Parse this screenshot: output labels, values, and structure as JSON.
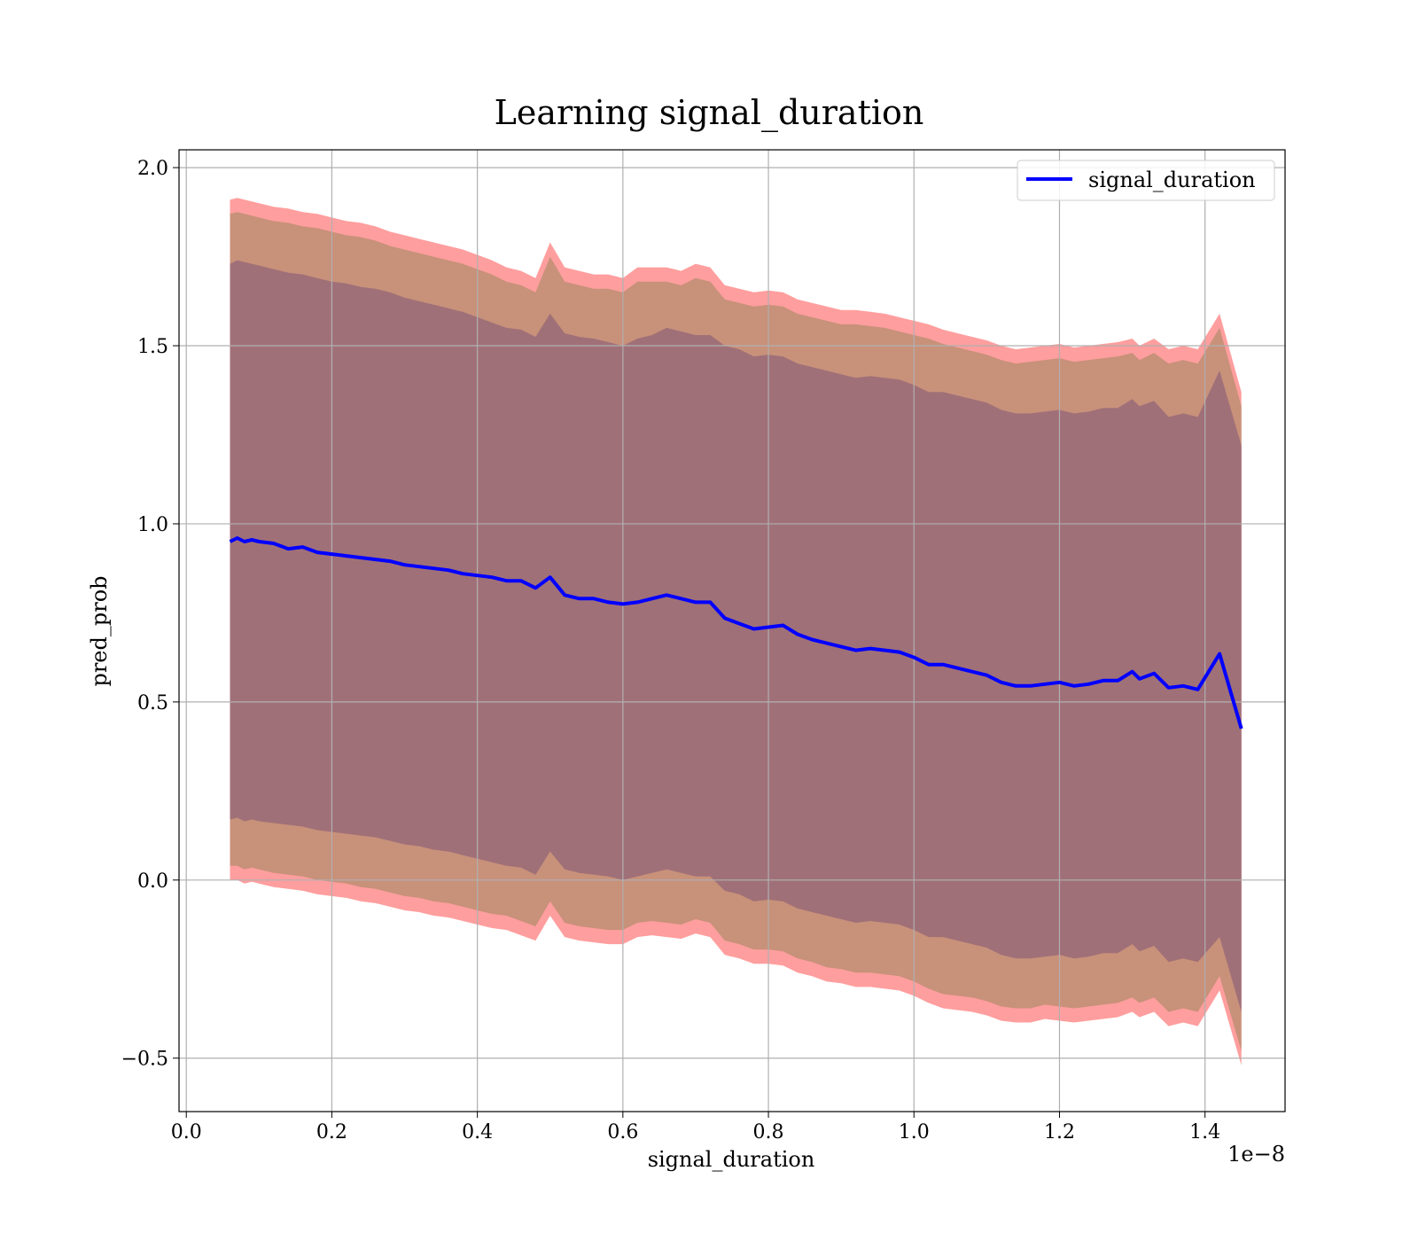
{
  "chart_data": {
    "type": "line",
    "title": "Learning signal_duration",
    "xlabel": "signal_duration",
    "ylabel": "pred_prob",
    "x_offset_label": "1e−8",
    "x_scale": 1e-08,
    "xlim": [
      -0.01,
      1.51
    ],
    "ylim": [
      -0.65,
      2.05
    ],
    "grid": true,
    "legend": {
      "location": "upper right",
      "entries": [
        "signal_duration"
      ]
    },
    "x_ticks": [
      0.0,
      0.2,
      0.4,
      0.6,
      0.8,
      1.0,
      1.2,
      1.4
    ],
    "x_tick_labels": [
      "0.0",
      "0.2",
      "0.4",
      "0.6",
      "0.8",
      "1.0",
      "1.2",
      "1.4"
    ],
    "y_ticks": [
      -0.5,
      0.0,
      0.5,
      1.0,
      1.5,
      2.0
    ],
    "y_tick_labels": [
      "−0.5",
      "0.0",
      "0.5",
      "1.0",
      "1.5",
      "2.0"
    ],
    "colors": {
      "line": "#0000ff",
      "outer_band": "#ff9e9e",
      "middle_band": "#c8917a",
      "inner_band": "#a07078"
    },
    "series": [
      {
        "name": "signal_duration",
        "x": [
          0.06,
          0.07,
          0.08,
          0.09,
          0.1,
          0.12,
          0.14,
          0.16,
          0.18,
          0.2,
          0.22,
          0.24,
          0.26,
          0.28,
          0.3,
          0.32,
          0.34,
          0.36,
          0.38,
          0.4,
          0.42,
          0.44,
          0.46,
          0.48,
          0.5,
          0.52,
          0.54,
          0.56,
          0.58,
          0.6,
          0.62,
          0.64,
          0.66,
          0.68,
          0.7,
          0.72,
          0.74,
          0.76,
          0.78,
          0.8,
          0.82,
          0.84,
          0.86,
          0.88,
          0.9,
          0.92,
          0.94,
          0.96,
          0.98,
          1.0,
          1.02,
          1.04,
          1.06,
          1.08,
          1.1,
          1.12,
          1.14,
          1.16,
          1.18,
          1.2,
          1.22,
          1.24,
          1.26,
          1.28,
          1.3,
          1.31,
          1.33,
          1.35,
          1.37,
          1.39,
          1.42,
          1.45
        ],
        "y": [
          0.95,
          0.96,
          0.95,
          0.955,
          0.95,
          0.945,
          0.93,
          0.935,
          0.92,
          0.915,
          0.91,
          0.905,
          0.9,
          0.895,
          0.885,
          0.88,
          0.875,
          0.87,
          0.86,
          0.855,
          0.85,
          0.84,
          0.84,
          0.82,
          0.85,
          0.8,
          0.79,
          0.79,
          0.78,
          0.775,
          0.78,
          0.79,
          0.8,
          0.79,
          0.78,
          0.78,
          0.735,
          0.72,
          0.705,
          0.71,
          0.715,
          0.69,
          0.675,
          0.665,
          0.655,
          0.645,
          0.65,
          0.645,
          0.64,
          0.625,
          0.605,
          0.605,
          0.595,
          0.585,
          0.575,
          0.555,
          0.545,
          0.545,
          0.55,
          0.555,
          0.545,
          0.55,
          0.56,
          0.56,
          0.585,
          0.565,
          0.58,
          0.54,
          0.545,
          0.535,
          0.635,
          0.425
        ],
        "band_outer_upper": [
          1.91,
          1.915,
          1.91,
          1.905,
          1.9,
          1.89,
          1.885,
          1.875,
          1.87,
          1.86,
          1.85,
          1.845,
          1.835,
          1.82,
          1.81,
          1.8,
          1.79,
          1.78,
          1.77,
          1.755,
          1.74,
          1.72,
          1.71,
          1.69,
          1.79,
          1.72,
          1.71,
          1.7,
          1.7,
          1.69,
          1.72,
          1.72,
          1.72,
          1.71,
          1.73,
          1.72,
          1.67,
          1.66,
          1.65,
          1.655,
          1.65,
          1.63,
          1.62,
          1.61,
          1.6,
          1.6,
          1.595,
          1.59,
          1.58,
          1.57,
          1.56,
          1.545,
          1.535,
          1.525,
          1.515,
          1.5,
          1.49,
          1.495,
          1.5,
          1.505,
          1.495,
          1.5,
          1.505,
          1.51,
          1.52,
          1.5,
          1.52,
          1.49,
          1.5,
          1.49,
          1.59,
          1.37
        ],
        "band_outer_lower": [
          0.0,
          0.0,
          -0.01,
          -0.005,
          -0.01,
          -0.02,
          -0.025,
          -0.03,
          -0.04,
          -0.045,
          -0.05,
          -0.06,
          -0.065,
          -0.075,
          -0.085,
          -0.09,
          -0.1,
          -0.105,
          -0.115,
          -0.125,
          -0.135,
          -0.14,
          -0.155,
          -0.17,
          -0.1,
          -0.16,
          -0.17,
          -0.175,
          -0.18,
          -0.18,
          -0.16,
          -0.155,
          -0.16,
          -0.165,
          -0.15,
          -0.16,
          -0.21,
          -0.22,
          -0.235,
          -0.235,
          -0.24,
          -0.26,
          -0.27,
          -0.285,
          -0.29,
          -0.3,
          -0.3,
          -0.305,
          -0.31,
          -0.325,
          -0.345,
          -0.36,
          -0.365,
          -0.37,
          -0.38,
          -0.395,
          -0.4,
          -0.4,
          -0.39,
          -0.395,
          -0.4,
          -0.395,
          -0.39,
          -0.385,
          -0.37,
          -0.385,
          -0.37,
          -0.41,
          -0.4,
          -0.41,
          -0.31,
          -0.52
        ],
        "band_middle_upper": [
          1.87,
          1.875,
          1.87,
          1.865,
          1.86,
          1.85,
          1.845,
          1.835,
          1.83,
          1.82,
          1.81,
          1.805,
          1.795,
          1.78,
          1.77,
          1.76,
          1.75,
          1.74,
          1.73,
          1.715,
          1.7,
          1.68,
          1.67,
          1.65,
          1.75,
          1.68,
          1.67,
          1.66,
          1.66,
          1.65,
          1.68,
          1.68,
          1.68,
          1.67,
          1.69,
          1.68,
          1.63,
          1.62,
          1.61,
          1.615,
          1.61,
          1.59,
          1.58,
          1.57,
          1.56,
          1.56,
          1.555,
          1.55,
          1.54,
          1.53,
          1.52,
          1.505,
          1.495,
          1.485,
          1.475,
          1.46,
          1.45,
          1.455,
          1.46,
          1.465,
          1.455,
          1.46,
          1.465,
          1.47,
          1.48,
          1.46,
          1.48,
          1.45,
          1.46,
          1.45,
          1.55,
          1.33
        ],
        "band_middle_lower": [
          0.04,
          0.04,
          0.03,
          0.035,
          0.03,
          0.02,
          0.015,
          0.01,
          0.0,
          -0.005,
          -0.01,
          -0.02,
          -0.025,
          -0.035,
          -0.045,
          -0.05,
          -0.06,
          -0.065,
          -0.075,
          -0.085,
          -0.095,
          -0.1,
          -0.115,
          -0.13,
          -0.06,
          -0.12,
          -0.13,
          -0.135,
          -0.14,
          -0.14,
          -0.12,
          -0.115,
          -0.12,
          -0.125,
          -0.11,
          -0.12,
          -0.17,
          -0.18,
          -0.195,
          -0.195,
          -0.2,
          -0.22,
          -0.23,
          -0.245,
          -0.25,
          -0.26,
          -0.26,
          -0.265,
          -0.27,
          -0.285,
          -0.305,
          -0.32,
          -0.325,
          -0.33,
          -0.34,
          -0.355,
          -0.36,
          -0.36,
          -0.35,
          -0.355,
          -0.36,
          -0.355,
          -0.35,
          -0.345,
          -0.33,
          -0.345,
          -0.33,
          -0.37,
          -0.36,
          -0.37,
          -0.27,
          -0.48
        ],
        "band_inner_upper": [
          1.73,
          1.74,
          1.735,
          1.73,
          1.725,
          1.715,
          1.705,
          1.7,
          1.69,
          1.68,
          1.675,
          1.665,
          1.66,
          1.65,
          1.635,
          1.625,
          1.615,
          1.605,
          1.595,
          1.58,
          1.565,
          1.55,
          1.545,
          1.525,
          1.59,
          1.535,
          1.525,
          1.52,
          1.51,
          1.5,
          1.52,
          1.53,
          1.55,
          1.54,
          1.53,
          1.53,
          1.5,
          1.49,
          1.47,
          1.475,
          1.47,
          1.45,
          1.44,
          1.43,
          1.42,
          1.41,
          1.415,
          1.41,
          1.405,
          1.39,
          1.37,
          1.37,
          1.36,
          1.35,
          1.34,
          1.32,
          1.31,
          1.31,
          1.315,
          1.32,
          1.31,
          1.315,
          1.325,
          1.325,
          1.35,
          1.33,
          1.345,
          1.3,
          1.31,
          1.3,
          1.43,
          1.22
        ],
        "band_inner_lower": [
          0.17,
          0.175,
          0.165,
          0.17,
          0.165,
          0.16,
          0.155,
          0.15,
          0.14,
          0.135,
          0.13,
          0.125,
          0.12,
          0.11,
          0.1,
          0.095,
          0.085,
          0.08,
          0.07,
          0.06,
          0.05,
          0.04,
          0.035,
          0.015,
          0.08,
          0.03,
          0.02,
          0.015,
          0.01,
          0.0,
          0.01,
          0.02,
          0.03,
          0.02,
          0.01,
          0.01,
          -0.03,
          -0.04,
          -0.06,
          -0.055,
          -0.06,
          -0.08,
          -0.09,
          -0.1,
          -0.11,
          -0.12,
          -0.115,
          -0.12,
          -0.125,
          -0.14,
          -0.16,
          -0.16,
          -0.17,
          -0.18,
          -0.19,
          -0.21,
          -0.22,
          -0.22,
          -0.215,
          -0.21,
          -0.22,
          -0.215,
          -0.205,
          -0.205,
          -0.18,
          -0.2,
          -0.185,
          -0.23,
          -0.22,
          -0.23,
          -0.16,
          -0.37
        ]
      }
    ]
  }
}
